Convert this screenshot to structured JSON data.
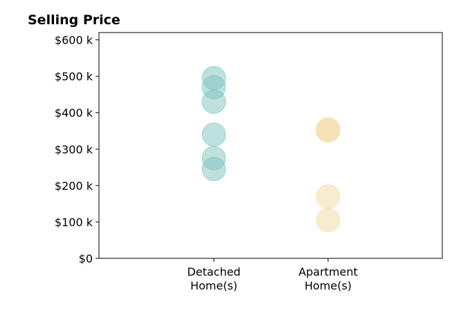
{
  "chart_data": {
    "type": "scatter",
    "title": "Selling Price",
    "xlabel": "",
    "ylabel": "",
    "categories": [
      "Detached\nHome(s)",
      "Apartment\nHome(s)"
    ],
    "ylim": [
      0,
      620000
    ],
    "yticks": [
      0,
      100000,
      200000,
      300000,
      400000,
      500000,
      600000
    ],
    "ytick_labels": [
      "$0",
      "$100 k",
      "$200 k",
      "$300 k",
      "$400 k",
      "$500 k",
      "$600 k"
    ],
    "grid": false,
    "series": [
      {
        "category": "Detached\nHome(s)",
        "color": "#7dc4bd",
        "values": [
          495000,
          470000,
          430000,
          340000,
          275000,
          245000
        ]
      },
      {
        "category": "Apartment\nHome(s)",
        "color": "#f1d9a0",
        "values": [
          355000,
          350000,
          170000,
          105000
        ]
      }
    ]
  }
}
